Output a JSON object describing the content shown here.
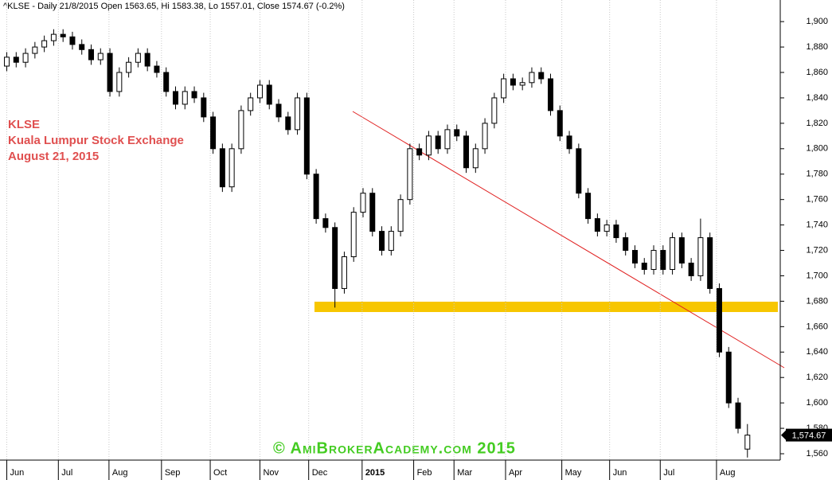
{
  "chart_data": {
    "type": "candlestick",
    "title": "^KLSE - Daily 21/8/2015 Open 1563.65, Hi 1583.38, Lo 1557.01, Close 1574.67 (-0.2%)",
    "annotations": [
      "KLSE",
      "Kuala Lumpur Stock Exchange",
      "August 21, 2015"
    ],
    "watermark": "© AmiBrokerAcademy.com 2015",
    "last_label": "1,574.67",
    "up_color": "#ffffff",
    "down_color": "#000000",
    "open": [
      1865,
      1872,
      1868,
      1875,
      1880,
      1885,
      1890,
      1888,
      1882,
      1878,
      1870,
      1875,
      1845,
      1860,
      1868,
      1875,
      1865,
      1860,
      1845,
      1835,
      1845,
      1840,
      1825,
      1800,
      1770,
      1800,
      1830,
      1840,
      1850,
      1835,
      1825,
      1815,
      1840,
      1780,
      1745,
      1738,
      1690,
      1715,
      1750,
      1765,
      1735,
      1720,
      1735,
      1760,
      1800,
      1795,
      1810,
      1800,
      1815,
      1810,
      1785,
      1800,
      1820,
      1840,
      1855,
      1850,
      1852,
      1860,
      1855,
      1830,
      1810,
      1800,
      1765,
      1745,
      1735,
      1740,
      1730,
      1720,
      1710,
      1705,
      1720,
      1705,
      1730,
      1710,
      1700,
      1730,
      1690,
      1640,
      1600,
      1563.65
    ],
    "high": [
      1876,
      1876,
      1879,
      1884,
      1889,
      1894,
      1894,
      1892,
      1886,
      1882,
      1879,
      1879,
      1864,
      1872,
      1879,
      1879,
      1869,
      1864,
      1849,
      1849,
      1849,
      1844,
      1829,
      1804,
      1804,
      1834,
      1844,
      1854,
      1854,
      1839,
      1829,
      1844,
      1844,
      1784,
      1749,
      1742,
      1719,
      1754,
      1769,
      1769,
      1739,
      1739,
      1764,
      1804,
      1804,
      1814,
      1814,
      1819,
      1819,
      1814,
      1804,
      1824,
      1844,
      1859,
      1859,
      1856,
      1864,
      1864,
      1859,
      1834,
      1814,
      1804,
      1769,
      1749,
      1744,
      1744,
      1734,
      1724,
      1714,
      1724,
      1724,
      1734,
      1734,
      1714,
      1745,
      1734,
      1694,
      1644,
      1604,
      1583.38
    ],
    "low": [
      1861,
      1864,
      1864,
      1871,
      1876,
      1881,
      1884,
      1878,
      1874,
      1866,
      1866,
      1841,
      1841,
      1856,
      1864,
      1861,
      1856,
      1841,
      1831,
      1831,
      1836,
      1821,
      1796,
      1766,
      1766,
      1796,
      1826,
      1836,
      1831,
      1821,
      1811,
      1811,
      1776,
      1741,
      1734,
      1675,
      1686,
      1711,
      1746,
      1731,
      1716,
      1716,
      1731,
      1756,
      1791,
      1791,
      1796,
      1796,
      1806,
      1781,
      1781,
      1796,
      1816,
      1836,
      1846,
      1846,
      1848,
      1851,
      1826,
      1806,
      1796,
      1761,
      1741,
      1731,
      1731,
      1726,
      1716,
      1706,
      1701,
      1701,
      1701,
      1701,
      1706,
      1696,
      1696,
      1686,
      1636,
      1596,
      1576,
      1557.01
    ],
    "close": [
      1872,
      1868,
      1875,
      1880,
      1885,
      1890,
      1888,
      1882,
      1878,
      1870,
      1875,
      1845,
      1860,
      1868,
      1875,
      1865,
      1860,
      1845,
      1835,
      1845,
      1840,
      1825,
      1800,
      1770,
      1800,
      1830,
      1840,
      1850,
      1835,
      1825,
      1815,
      1840,
      1780,
      1745,
      1738,
      1690,
      1715,
      1750,
      1765,
      1735,
      1720,
      1735,
      1760,
      1800,
      1795,
      1810,
      1800,
      1815,
      1810,
      1785,
      1800,
      1820,
      1840,
      1855,
      1850,
      1852,
      1860,
      1855,
      1830,
      1810,
      1800,
      1765,
      1745,
      1735,
      1740,
      1730,
      1720,
      1710,
      1705,
      1720,
      1705,
      1730,
      1710,
      1700,
      1730,
      1690,
      1640,
      1600,
      1580,
      1574.67
    ],
    "xlim": [
      -0.3,
      82.5
    ],
    "xticks": [
      {
        "value": 0,
        "label": "Jun"
      },
      {
        "value": 5.5,
        "label": "Jul"
      },
      {
        "value": 10.9,
        "label": "Aug"
      },
      {
        "value": 16.5,
        "label": "Sep"
      },
      {
        "value": 21.7,
        "label": "Oct"
      },
      {
        "value": 27,
        "label": "Nov"
      },
      {
        "value": 32.2,
        "label": "Dec"
      },
      {
        "value": 37.9,
        "label": "2015"
      },
      {
        "value": 43.4,
        "label": "Feb"
      },
      {
        "value": 47.7,
        "label": "Mar"
      },
      {
        "value": 53.2,
        "label": "Apr"
      },
      {
        "value": 59.2,
        "label": "May"
      },
      {
        "value": 64.3,
        "label": "Jun"
      },
      {
        "value": 69.7,
        "label": "Jul"
      },
      {
        "value": 75.7,
        "label": "Aug"
      }
    ],
    "ylim": [
      1555,
      1917
    ],
    "yticks": [
      {
        "value": 1560,
        "label": "1,560"
      },
      {
        "value": 1580,
        "label": "1,580"
      },
      {
        "value": 1600,
        "label": "1,600"
      },
      {
        "value": 1620,
        "label": "1,620"
      },
      {
        "value": 1640,
        "label": "1,640"
      },
      {
        "value": 1660,
        "label": "1,660"
      },
      {
        "value": 1680,
        "label": "1,680"
      },
      {
        "value": 1700,
        "label": "1,700"
      },
      {
        "value": 1720,
        "label": "1,720"
      },
      {
        "value": 1740,
        "label": "1,740"
      },
      {
        "value": 1760,
        "label": "1,760"
      },
      {
        "value": 1780,
        "label": "1,780"
      },
      {
        "value": 1800,
        "label": "1,800"
      },
      {
        "value": 1820,
        "label": "1,820"
      },
      {
        "value": 1840,
        "label": "1,840"
      },
      {
        "value": 1860,
        "label": "1,860"
      },
      {
        "value": 1880,
        "label": "1,880"
      },
      {
        "value": 1900,
        "label": "1,900"
      }
    ],
    "grid": true
  }
}
